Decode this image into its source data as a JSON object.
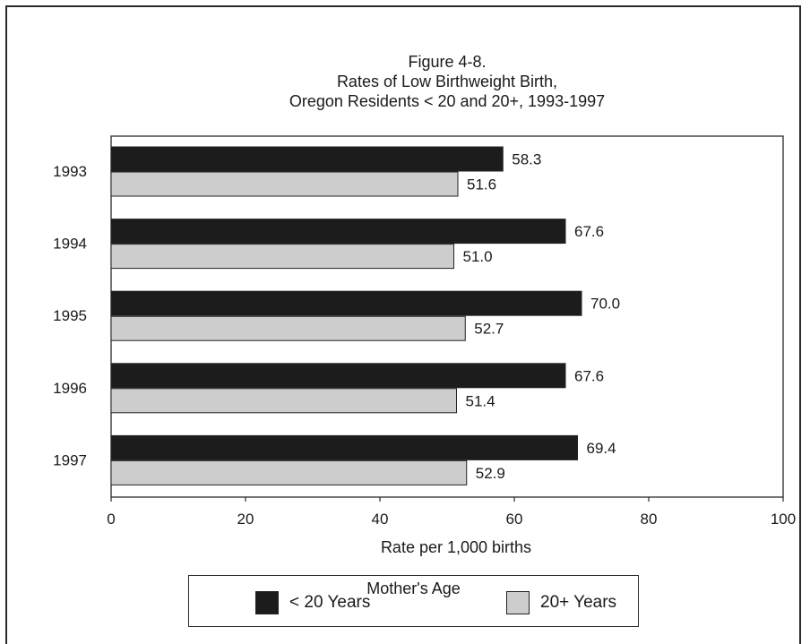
{
  "chart_data": {
    "type": "bar",
    "orientation": "horizontal",
    "title": "Figure 4-8.",
    "subtitle": [
      "Rates of Low Birthweight Birth,",
      "Oregon Residents < 20 and 20+, 1993-1997"
    ],
    "categories": [
      "1993",
      "1994",
      "1995",
      "1996",
      "1997"
    ],
    "series": [
      {
        "name": "< 20 Years",
        "values": [
          58.3,
          67.6,
          70.0,
          67.6,
          69.4
        ],
        "labels": [
          "58.3",
          "67.6",
          "70.0",
          "67.6",
          "69.4"
        ],
        "color": "#1c1c1c"
      },
      {
        "name": "20+ Years",
        "values": [
          51.6,
          51.0,
          52.7,
          51.4,
          52.9
        ],
        "labels": [
          "51.6",
          "51.0",
          "52.7",
          "51.4",
          "52.9"
        ],
        "color": "#cdcdcd"
      }
    ],
    "xlabel": "Rate per 1,000 births",
    "ylabel": "",
    "xlim": [
      0,
      100
    ],
    "xticks": [
      "0",
      "20",
      "40",
      "60",
      "80",
      "100"
    ],
    "grid": false,
    "legend": {
      "title": "Mother's Age",
      "placement": "bottom"
    }
  }
}
